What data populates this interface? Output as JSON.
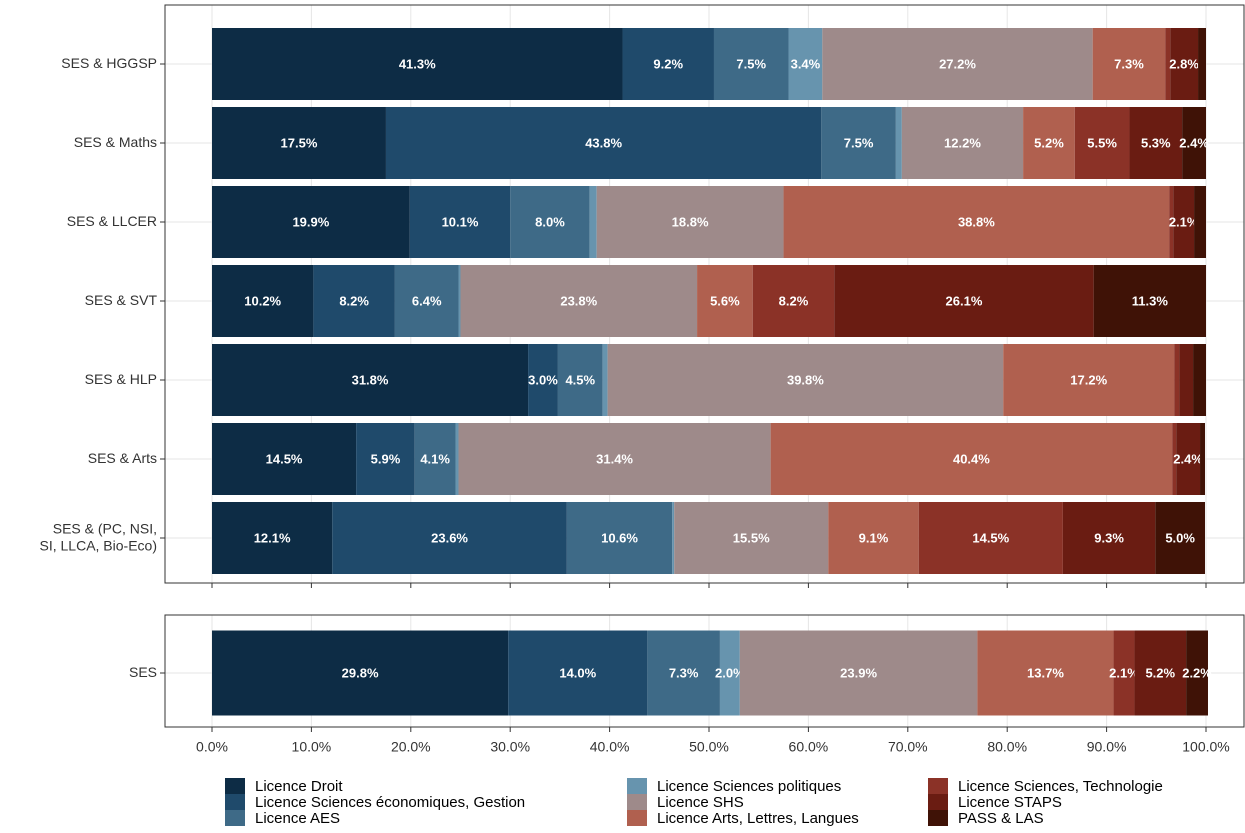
{
  "chart_data": {
    "type": "stacked-bar-horizontal",
    "categories": [
      "SES & HGGSP",
      "SES & Maths",
      "SES & LLCER",
      "SES & SVT",
      "SES & HLP",
      "SES & Arts",
      "SES & (PC, NSI,\nSI, LLCA, Bio-Eco)",
      "SES"
    ],
    "series": [
      {
        "name": "Licence Droit",
        "color": "#0d2c45",
        "values": [
          41.3,
          17.5,
          19.9,
          10.2,
          31.8,
          14.5,
          12.1,
          29.8
        ],
        "value_labels": [
          "41.3%",
          "17.5%",
          "19.9%",
          "10.2%",
          "31.8%",
          "14.5%",
          "12.1%",
          "29.8%"
        ]
      },
      {
        "name": "Licence Sciences économiques, Gestion",
        "color": "#1f4a6b",
        "values": [
          9.2,
          43.8,
          10.1,
          8.2,
          3.0,
          5.9,
          23.6,
          14.0
        ],
        "value_labels": [
          "9.2%",
          "43.8%",
          "10.1%",
          "8.2%",
          "3.0%",
          "5.9%",
          "23.6%",
          "14.0%"
        ]
      },
      {
        "name": "Licence AES",
        "color": "#3e6a87",
        "values": [
          7.5,
          7.5,
          8.0,
          6.4,
          4.5,
          4.1,
          10.6,
          7.3
        ],
        "value_labels": [
          "7.5%",
          "7.5%",
          "8.0%",
          "6.4%",
          "4.5%",
          "4.1%",
          "10.6%",
          "7.3%"
        ]
      },
      {
        "name": "Licence Sciences politiques",
        "color": "#6794ae",
        "values": [
          3.4,
          0.6,
          0.7,
          0.2,
          0.5,
          0.3,
          0.2,
          2.0
        ],
        "value_labels": [
          "3.4%",
          null,
          null,
          null,
          null,
          null,
          null,
          "2.0%"
        ]
      },
      {
        "name": "Licence SHS",
        "color": "#9e8a8a",
        "values": [
          27.2,
          12.2,
          18.8,
          23.8,
          39.8,
          31.4,
          15.5,
          23.9
        ],
        "value_labels": [
          "27.2%",
          "12.2%",
          "18.8%",
          "23.8%",
          "39.8%",
          "31.4%",
          "15.5%",
          "23.9%"
        ]
      },
      {
        "name": "Licence Arts, Lettres, Langues",
        "color": "#b0604f",
        "values": [
          7.3,
          5.2,
          38.8,
          5.6,
          17.2,
          40.4,
          9.1,
          13.7
        ],
        "value_labels": [
          "7.3%",
          "5.2%",
          "38.8%",
          "5.6%",
          "17.2%",
          "40.4%",
          "9.1%",
          "13.7%"
        ]
      },
      {
        "name": "Licence Sciences, Technologie",
        "color": "#8b3227",
        "values": [
          0.5,
          5.5,
          0.4,
          8.2,
          0.5,
          0.4,
          14.5,
          2.1
        ],
        "value_labels": [
          null,
          "5.5%",
          null,
          "8.2%",
          null,
          null,
          "14.5%",
          "2.1%"
        ]
      },
      {
        "name": "Licence STAPS",
        "color": "#6a1c12",
        "values": [
          2.8,
          5.3,
          2.1,
          26.1,
          1.4,
          2.4,
          9.3,
          5.2
        ],
        "value_labels": [
          "2.8%",
          "5.3%",
          "2.1%",
          "26.1%",
          null,
          "2.4%",
          "9.3%",
          "5.2%"
        ]
      },
      {
        "name": "PASS & LAS",
        "color": "#3f1206",
        "values": [
          0.8,
          2.4,
          1.2,
          11.3,
          1.3,
          0.5,
          5.0,
          2.2
        ],
        "value_labels": [
          null,
          "2.4%",
          null,
          "11.3%",
          null,
          null,
          "5.0%",
          "2.2%"
        ]
      }
    ],
    "xlim": [
      0,
      100
    ],
    "xticks": [
      {
        "value": 0,
        "label": "0.0%"
      },
      {
        "value": 10,
        "label": "10.0%"
      },
      {
        "value": 20,
        "label": "20.0%"
      },
      {
        "value": 30,
        "label": "30.0%"
      },
      {
        "value": 40,
        "label": "40.0%"
      },
      {
        "value": 50,
        "label": "50.0%"
      },
      {
        "value": 60,
        "label": "60.0%"
      },
      {
        "value": 70,
        "label": "70.0%"
      },
      {
        "value": 80,
        "label": "80.0%"
      },
      {
        "value": 90,
        "label": "90.0%"
      },
      {
        "value": 100,
        "label": "100.0%"
      }
    ],
    "grid": true,
    "legend": "bottom"
  }
}
